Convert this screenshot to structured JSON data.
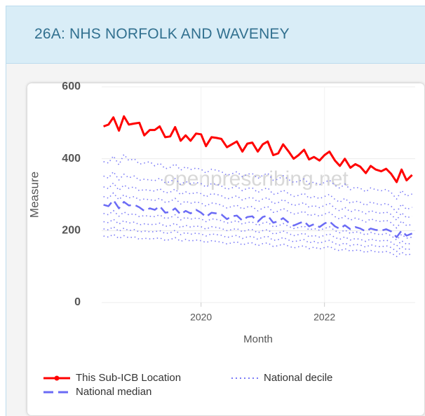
{
  "header": {
    "title": "26A: NHS NORFOLK AND WAVENEY"
  },
  "chart_data": {
    "type": "line",
    "watermark": "openprescribing.net",
    "x_label": "Month",
    "y_label": "Measure",
    "x": [
      2018.42,
      2018.5,
      2018.58,
      2018.67,
      2018.75,
      2018.83,
      2018.92,
      2019,
      2019.08,
      2019.17,
      2019.25,
      2019.33,
      2019.42,
      2019.5,
      2019.58,
      2019.67,
      2019.75,
      2019.83,
      2019.92,
      2020,
      2020.08,
      2020.17,
      2020.25,
      2020.33,
      2020.42,
      2020.5,
      2020.58,
      2020.67,
      2020.75,
      2020.83,
      2020.92,
      2021,
      2021.08,
      2021.17,
      2021.25,
      2021.33,
      2021.42,
      2021.5,
      2021.58,
      2021.67,
      2021.75,
      2021.83,
      2021.92,
      2022,
      2022.08,
      2022.17,
      2022.25,
      2022.33,
      2022.42,
      2022.5,
      2022.58,
      2022.67,
      2022.75,
      2022.83,
      2022.92,
      2023,
      2023.08,
      2023.17,
      2023.25,
      2023.33,
      2023.42
    ],
    "xlim": [
      2018.39,
      2023.47
    ],
    "xticks": [
      2020,
      2022
    ],
    "ylim": [
      0,
      600
    ],
    "yticks": [
      0,
      200,
      400,
      600
    ],
    "grid": true,
    "series": [
      {
        "name": "This Sub-ICB Location",
        "color": "#ff0000",
        "style": "solid",
        "values": [
          490,
          495,
          515,
          478,
          518,
          495,
          498,
          500,
          465,
          480,
          480,
          490,
          460,
          462,
          488,
          450,
          465,
          450,
          470,
          468,
          435,
          460,
          458,
          455,
          432,
          440,
          448,
          420,
          442,
          445,
          420,
          440,
          448,
          410,
          415,
          440,
          420,
          400,
          410,
          425,
          398,
          405,
          395,
          410,
          420,
          395,
          380,
          400,
          375,
          385,
          378,
          360,
          380,
          370,
          365,
          372,
          358,
          335,
          370,
          340,
          355
        ]
      },
      {
        "name": "National median",
        "color": "#6b6bf5",
        "style": "dashed",
        "values": [
          272,
          268,
          285,
          262,
          280,
          270,
          272,
          265,
          255,
          262,
          258,
          268,
          250,
          252,
          262,
          245,
          255,
          248,
          258,
          250,
          238,
          250,
          248,
          245,
          232,
          240,
          242,
          228,
          238,
          240,
          225,
          238,
          242,
          222,
          226,
          235,
          222,
          214,
          220,
          226,
          212,
          218,
          210,
          220,
          226,
          212,
          205,
          215,
          204,
          210,
          206,
          198,
          206,
          202,
          200,
          204,
          198,
          182,
          200,
          186,
          192
        ]
      }
    ],
    "decile_lines": {
      "name": "National decile",
      "color": "#7a7af7",
      "style": "dotted",
      "values": [
        [
          185,
          182,
          190,
          178,
          186,
          180,
          183,
          176,
          179,
          177,
          178,
          180,
          173,
          175,
          181,
          170,
          176,
          171,
          174,
          172,
          167,
          172,
          170,
          168,
          163,
          166,
          169,
          160,
          165,
          166,
          158,
          164,
          166,
          156,
          158,
          163,
          157,
          152,
          155,
          158,
          150,
          154,
          149,
          153,
          156,
          148,
          144,
          150,
          143,
          146,
          145,
          139,
          145,
          141,
          140,
          142,
          138,
          128,
          140,
          132,
          135
        ],
        [
          205,
          202,
          211,
          198,
          207,
          200,
          203,
          196,
          199,
          197,
          197,
          200,
          192,
          194,
          201,
          189,
          195,
          190,
          193,
          191,
          185,
          191,
          189,
          187,
          181,
          184,
          187,
          178,
          183,
          184,
          176,
          182,
          184,
          173,
          175,
          181,
          174,
          169,
          172,
          175,
          166,
          170,
          165,
          170,
          173,
          164,
          160,
          166,
          158,
          162,
          160,
          154,
          161,
          157,
          155,
          158,
          153,
          142,
          156,
          147,
          150
        ],
        [
          225,
          222,
          232,
          218,
          228,
          221,
          224,
          216,
          219,
          217,
          217,
          221,
          212,
          214,
          221,
          208,
          215,
          210,
          213,
          211,
          204,
          211,
          209,
          206,
          200,
          203,
          206,
          197,
          202,
          203,
          194,
          200,
          203,
          191,
          193,
          199,
          192,
          186,
          189,
          193,
          183,
          187,
          182,
          187,
          191,
          181,
          176,
          183,
          174,
          178,
          176,
          170,
          177,
          173,
          171,
          174,
          168,
          157,
          172,
          162,
          165
        ],
        [
          248,
          244,
          256,
          240,
          252,
          244,
          247,
          239,
          242,
          240,
          239,
          244,
          234,
          236,
          244,
          230,
          237,
          232,
          235,
          233,
          225,
          233,
          231,
          228,
          221,
          224,
          228,
          218,
          223,
          224,
          214,
          221,
          224,
          211,
          213,
          220,
          212,
          206,
          209,
          213,
          202,
          206,
          201,
          206,
          211,
          200,
          194,
          202,
          192,
          197,
          194,
          188,
          195,
          191,
          189,
          192,
          186,
          174,
          190,
          179,
          182
        ],
        [
          295,
          290,
          305,
          286,
          300,
          291,
          295,
          285,
          288,
          286,
          284,
          290,
          279,
          281,
          290,
          274,
          282,
          276,
          280,
          277,
          268,
          277,
          275,
          271,
          263,
          267,
          271,
          260,
          266,
          267,
          255,
          263,
          267,
          251,
          254,
          262,
          253,
          246,
          249,
          254,
          241,
          246,
          240,
          246,
          251,
          239,
          232,
          241,
          229,
          235,
          231,
          224,
          233,
          228,
          225,
          229,
          222,
          207,
          227,
          214,
          217
        ],
        [
          322,
          317,
          333,
          312,
          327,
          318,
          322,
          311,
          314,
          312,
          310,
          317,
          305,
          307,
          316,
          300,
          308,
          302,
          306,
          303,
          294,
          303,
          301,
          297,
          288,
          292,
          297,
          285,
          291,
          292,
          280,
          288,
          292,
          275,
          278,
          287,
          277,
          270,
          273,
          278,
          265,
          270,
          264,
          270,
          276,
          262,
          255,
          265,
          252,
          258,
          255,
          247,
          256,
          251,
          248,
          252,
          245,
          229,
          250,
          236,
          240
        ],
        [
          352,
          346,
          364,
          341,
          357,
          347,
          352,
          340,
          343,
          341,
          339,
          346,
          333,
          336,
          345,
          328,
          337,
          330,
          334,
          331,
          321,
          331,
          329,
          324,
          315,
          319,
          324,
          311,
          318,
          319,
          306,
          315,
          319,
          301,
          304,
          313,
          303,
          295,
          298,
          304,
          290,
          295,
          289,
          295,
          301,
          287,
          279,
          290,
          276,
          282,
          279,
          270,
          280,
          275,
          272,
          276,
          268,
          251,
          274,
          259,
          265
        ],
        [
          392,
          388,
          408,
          383,
          412,
          395,
          400,
          385,
          388,
          392,
          380,
          388,
          372,
          376,
          386,
          368,
          378,
          370,
          374,
          371,
          360,
          371,
          368,
          364,
          354,
          358,
          364,
          350,
          357,
          359,
          345,
          354,
          360,
          340,
          343,
          353,
          342,
          334,
          337,
          344,
          330,
          335,
          328,
          334,
          341,
          326,
          318,
          330,
          314,
          321,
          318,
          308,
          319,
          314,
          311,
          315,
          306,
          288,
          312,
          296,
          302
        ]
      ]
    }
  }
}
